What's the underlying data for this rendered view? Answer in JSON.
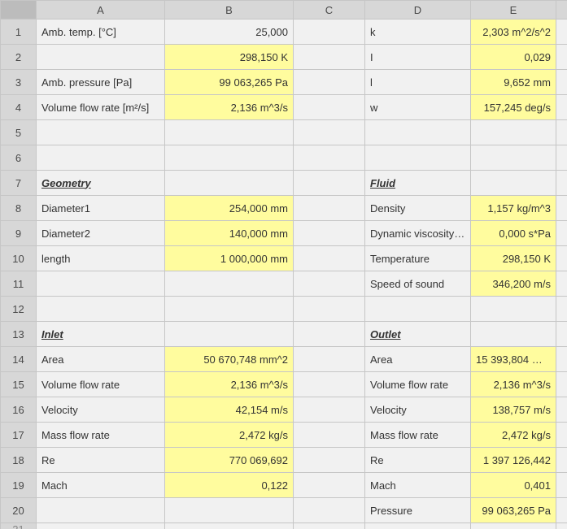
{
  "columns": [
    "A",
    "B",
    "C",
    "D",
    "E",
    ""
  ],
  "rowCount": 21,
  "colors": {
    "header_bg": "#d7d7d7",
    "cell_bg": "#f1f1f1",
    "highlight_bg": "#fffc9e",
    "border": "#c6c6c6",
    "text": "#333333"
  },
  "cells": {
    "A1": {
      "v": "Amb. temp. [°C]"
    },
    "B1": {
      "v": "25,000",
      "align": "right"
    },
    "D1": {
      "v": "k"
    },
    "E1": {
      "v": "2,303 m^2/s^2",
      "hl": true,
      "align": "right"
    },
    "B2": {
      "v": "298,150 K",
      "hl": true,
      "align": "right"
    },
    "D2": {
      "v": "I"
    },
    "E2": {
      "v": "0,029",
      "hl": true,
      "align": "right"
    },
    "A3": {
      "v": "Amb. pressure [Pa]"
    },
    "B3": {
      "v": "99 063,265 Pa",
      "hl": true,
      "align": "right"
    },
    "D3": {
      "v": "l"
    },
    "E3": {
      "v": "9,652 mm",
      "hl": true,
      "align": "right"
    },
    "A4": {
      "v": "Volume flow rate [m²/s]"
    },
    "B4": {
      "v": "2,136 m^3/s",
      "hl": true,
      "align": "right"
    },
    "D4": {
      "v": "w"
    },
    "E4": {
      "v": "157,245 deg/s",
      "hl": true,
      "align": "right"
    },
    "A7": {
      "v": "Geometry",
      "heading": true
    },
    "D7": {
      "v": "Fluid",
      "heading": true
    },
    "A8": {
      "v": "Diameter1"
    },
    "B8": {
      "v": "254,000 mm",
      "hl": true,
      "align": "right"
    },
    "D8": {
      "v": "Density"
    },
    "E8": {
      "v": "1,157 kg/m^3",
      "hl": true,
      "align": "right"
    },
    "A9": {
      "v": "Diameter2"
    },
    "B9": {
      "v": "140,000 mm",
      "hl": true,
      "align": "right"
    },
    "D9": {
      "v": "Dynamic viscosity …"
    },
    "E9": {
      "v": "0,000 s*Pa",
      "hl": true,
      "align": "right"
    },
    "A10": {
      "v": "length"
    },
    "B10": {
      "v": "1 000,000 mm",
      "hl": true,
      "align": "right"
    },
    "D10": {
      "v": "Temperature"
    },
    "E10": {
      "v": "298,150 K",
      "hl": true,
      "align": "right"
    },
    "D11": {
      "v": "Speed of sound"
    },
    "E11": {
      "v": "346,200 m/s",
      "hl": true,
      "align": "right"
    },
    "A13": {
      "v": "Inlet",
      "heading": true
    },
    "D13": {
      "v": "Outlet",
      "heading": true
    },
    "A14": {
      "v": "Area"
    },
    "B14": {
      "v": "50 670,748 mm^2",
      "hl": true,
      "align": "right"
    },
    "D14": {
      "v": "Area"
    },
    "E14": {
      "v": "15 393,804 m…",
      "hl": true,
      "align": "right"
    },
    "A15": {
      "v": "Volume flow rate"
    },
    "B15": {
      "v": "2,136 m^3/s",
      "hl": true,
      "align": "right"
    },
    "D15": {
      "v": "Volume flow rate"
    },
    "E15": {
      "v": "2,136 m^3/s",
      "hl": true,
      "align": "right"
    },
    "A16": {
      "v": "Velocity"
    },
    "B16": {
      "v": "42,154 m/s",
      "hl": true,
      "align": "right"
    },
    "D16": {
      "v": "Velocity"
    },
    "E16": {
      "v": "138,757 m/s",
      "hl": true,
      "align": "right"
    },
    "A17": {
      "v": "Mass flow rate"
    },
    "B17": {
      "v": "2,472 kg/s",
      "hl": true,
      "align": "right"
    },
    "D17": {
      "v": "Mass flow rate"
    },
    "E17": {
      "v": "2,472 kg/s",
      "hl": true,
      "align": "right"
    },
    "A18": {
      "v": "Re"
    },
    "B18": {
      "v": "770 069,692",
      "hl": true,
      "align": "right"
    },
    "D18": {
      "v": "Re"
    },
    "E18": {
      "v": "1 397 126,442",
      "hl": true,
      "align": "right"
    },
    "A19": {
      "v": "Mach"
    },
    "B19": {
      "v": "0,122",
      "hl": true,
      "align": "right"
    },
    "D19": {
      "v": "Mach"
    },
    "E19": {
      "v": "0,401",
      "hl": true,
      "align": "right"
    },
    "D20": {
      "v": "Pressure"
    },
    "E20": {
      "v": "99 063,265 Pa",
      "hl": true,
      "align": "right"
    }
  }
}
